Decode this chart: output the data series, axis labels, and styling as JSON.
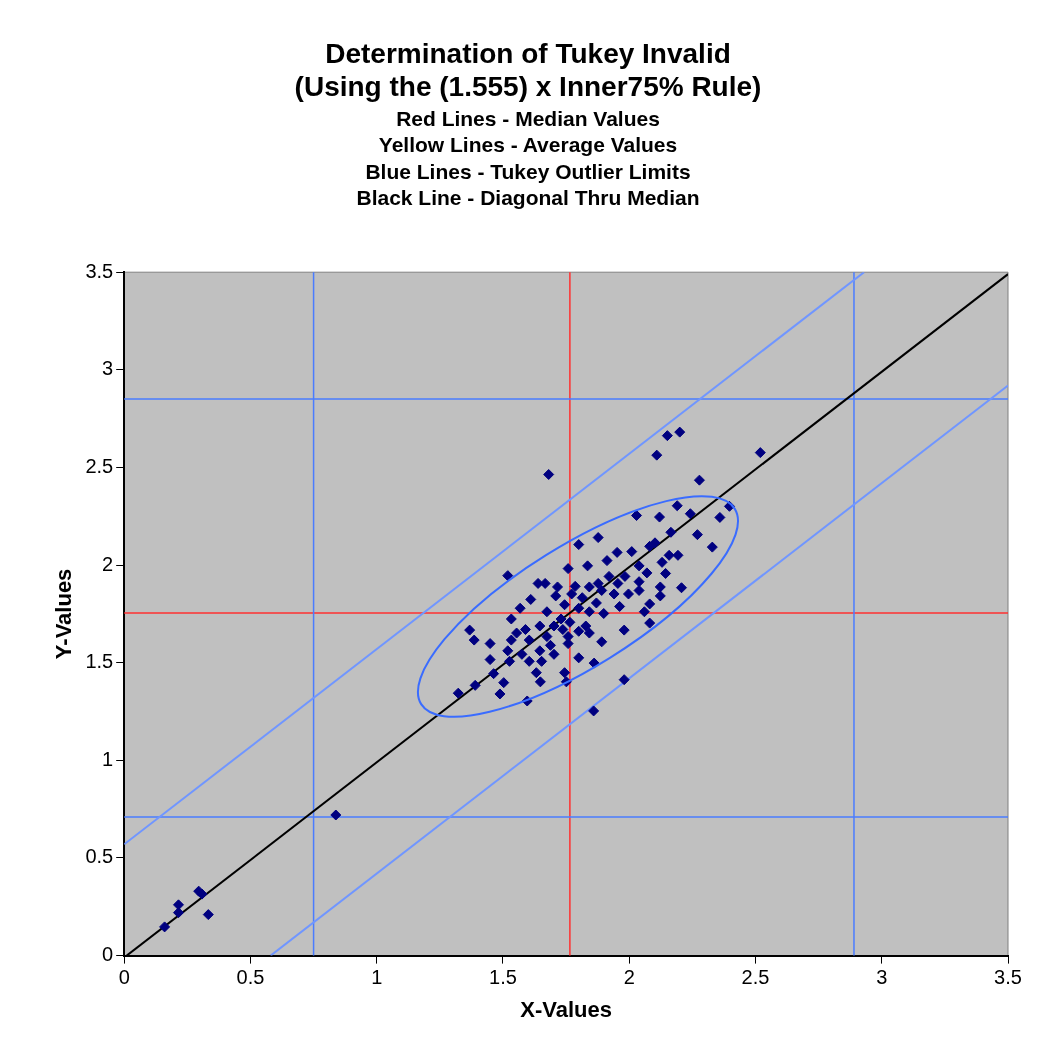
{
  "chart_data": {
    "type": "scatter",
    "title": "Determination of Tukey Invalid\n(Using the (1.555) x Inner75% Rule)",
    "subtitle": "Red Lines - Median Values\nYellow Lines - Average Values\nBlue Lines - Tukey Outlier Limits\nBlack Line - Diagonal Thru Median",
    "xlabel": "X-Values",
    "ylabel": "Y-Values",
    "xlim": [
      0,
      3.5
    ],
    "ylim": [
      0,
      3.5
    ],
    "xticks": [
      0,
      0.5,
      1,
      1.5,
      2,
      2.5,
      3,
      3.5
    ],
    "yticks": [
      0,
      0.5,
      1,
      1.5,
      2,
      2.5,
      3,
      3.5
    ],
    "grid": false,
    "legend": false,
    "series": [
      {
        "marker": "diamond",
        "color": "#000080",
        "x": [
          0.16,
          0.215,
          0.215,
          0.295,
          0.308,
          0.333,
          0.838,
          1.681,
          2.151,
          2.2,
          2.109,
          2.519,
          2.278,
          2.397,
          2.359,
          2.19,
          2.242,
          2.12,
          2.029,
          1.877,
          1.8,
          2.27,
          2.329,
          2.165,
          2.102,
          1.952,
          2.01,
          2.193,
          2.13,
          1.758,
          1.835,
          1.912,
          2.07,
          2.144,
          1.519,
          2.207,
          2.123,
          2.081,
          2.06,
          2.081,
          1.98,
          1.962,
          2.039,
          1.983,
          1.92,
          1.891,
          1.842,
          1.786,
          1.667,
          1.639,
          1.709,
          1.744,
          1.814,
          1.87,
          1.899,
          1.842,
          1.8,
          1.61,
          1.568,
          1.674,
          1.73,
          1.702,
          1.765,
          1.646,
          1.533,
          1.589,
          1.674,
          1.758,
          1.8,
          1.842,
          1.891,
          1.554,
          1.604,
          1.533,
          1.449,
          1.386,
          1.368,
          1.519,
          1.575,
          1.646,
          1.702,
          1.758,
          1.449,
          1.604,
          1.653,
          1.526,
          1.463,
          1.503,
          1.39,
          1.323,
          1.488,
          1.596,
          1.632,
          1.648,
          1.744,
          1.751,
          1.8,
          1.861,
          1.859,
          1.98,
          1.688,
          1.737,
          1.828,
          1.772,
          1.716,
          1.877,
          1.955,
          1.94,
          1.997,
          2.039,
          2.123,
          2.081,
          2.158,
          2.039
        ],
        "values": [
          0.147,
          0.26,
          0.22,
          0.33,
          0.315,
          0.21,
          0.72,
          2.464,
          2.663,
          2.681,
          2.563,
          2.576,
          2.435,
          2.301,
          2.244,
          2.304,
          2.263,
          2.246,
          2.254,
          2.141,
          2.105,
          2.156,
          2.092,
          2.168,
          2.114,
          2.065,
          2.069,
          2.05,
          2.014,
          1.982,
          1.996,
          2.023,
          1.96,
          1.957,
          1.946,
          1.884,
          1.842,
          1.801,
          1.761,
          1.703,
          1.667,
          1.788,
          1.915,
          1.942,
          1.942,
          1.87,
          1.888,
          1.891,
          1.906,
          1.906,
          1.842,
          1.797,
          1.833,
          1.806,
          1.752,
          1.761,
          1.779,
          1.824,
          1.779,
          1.761,
          1.724,
          1.688,
          1.707,
          1.688,
          1.724,
          1.67,
          1.634,
          1.634,
          1.661,
          1.652,
          1.607,
          1.652,
          1.616,
          1.616,
          1.598,
          1.616,
          1.667,
          1.561,
          1.543,
          1.561,
          1.543,
          1.598,
          1.516,
          1.507,
          1.507,
          1.507,
          1.444,
          1.398,
          1.384,
          1.344,
          1.34,
          1.304,
          1.449,
          1.402,
          1.449,
          1.402,
          1.525,
          1.498,
          1.253,
          1.413,
          1.589,
          1.67,
          1.688,
          1.852,
          1.888,
          1.906,
          1.906,
          1.852,
          1.852,
          1.87,
          1.888,
          2.096,
          2.05,
          1.996
        ]
      },
      {
        "type": "line",
        "color": "#000000",
        "x": [
          0.01,
          3.5
        ],
        "values": [
          0,
          3.49
        ]
      },
      {
        "type": "line",
        "color": "#7096ff",
        "x": [
          0,
          2.93
        ],
        "values": [
          0.57,
          3.5
        ]
      },
      {
        "type": "line",
        "color": "#7096ff",
        "x": [
          0.58,
          3.5
        ],
        "values": [
          0,
          2.92
        ]
      }
    ],
    "ref_lines": [
      {
        "axis": "x",
        "value": 1.765,
        "color": "#ff3030"
      },
      {
        "axis": "y",
        "value": 1.755,
        "color": "#ff3030"
      },
      {
        "axis": "x",
        "value": 0.75,
        "color": "#4a7cff"
      },
      {
        "axis": "x",
        "value": 2.89,
        "color": "#4a7cff"
      },
      {
        "axis": "y",
        "value": 0.71,
        "color": "#4a7cff"
      },
      {
        "axis": "y",
        "value": 2.85,
        "color": "#4a7cff"
      }
    ]
  }
}
